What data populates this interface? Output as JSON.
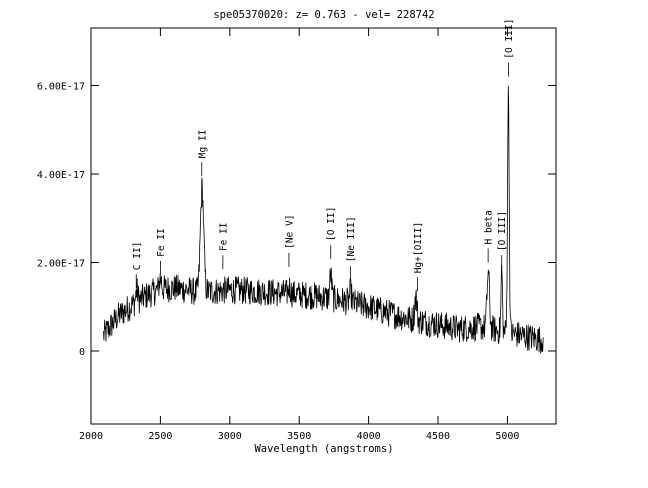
{
  "chart_data": {
    "type": "line",
    "title": "spe05370020: z= 0.763  -  vel= 228742",
    "xlabel": "Wavelength (angstroms)",
    "ylabel": "",
    "xlim": [
      2000,
      5350
    ],
    "ylim": [
      -1.65e-17,
      7.3e-17
    ],
    "x_ticks": [
      2000,
      2500,
      3000,
      3500,
      4000,
      4500,
      5000
    ],
    "y_ticks": [
      {
        "value": 6e-17,
        "label": "6.00E-17"
      },
      {
        "value": 4e-17,
        "label": "4.00E-17"
      },
      {
        "value": 2e-17,
        "label": "2.00E-17"
      },
      {
        "value": 0,
        "label": "0"
      }
    ],
    "spectrum_continuum": [
      [
        2090,
        3.5e-18
      ],
      [
        2200,
        8e-18
      ],
      [
        2300,
        1.05e-17
      ],
      [
        2400,
        1.25e-17
      ],
      [
        2500,
        1.4e-17
      ],
      [
        2600,
        1.42e-17
      ],
      [
        2700,
        1.38e-17
      ],
      [
        2760,
        1.33e-17
      ],
      [
        2900,
        1.35e-17
      ],
      [
        3000,
        1.38e-17
      ],
      [
        3200,
        1.35e-17
      ],
      [
        3400,
        1.3e-17
      ],
      [
        3600,
        1.25e-17
      ],
      [
        3800,
        1.15e-17
      ],
      [
        4000,
        1e-17
      ],
      [
        4150,
        8.5e-18
      ],
      [
        4300,
        7.2e-18
      ],
      [
        4500,
        6e-18
      ],
      [
        4650,
        5e-18
      ],
      [
        4800,
        5.5e-18
      ],
      [
        4950,
        4.5e-18
      ],
      [
        5100,
        3.5e-18
      ],
      [
        5260,
        2.5e-18
      ]
    ],
    "spectrum_peaks": [
      {
        "x": 2330,
        "height": 2.5e-18,
        "width": 8
      },
      {
        "x": 2500,
        "height": 2.5e-18,
        "width": 8
      },
      {
        "x": 2800,
        "height": 2.35e-17,
        "width": 12
      },
      {
        "x": 3430,
        "height": 1.5e-18,
        "width": 8
      },
      {
        "x": 3727,
        "height": 5.5e-18,
        "width": 7
      },
      {
        "x": 3870,
        "height": 2.5e-18,
        "width": 7
      },
      {
        "x": 4340,
        "height": 5.5e-18,
        "width": 8
      },
      {
        "x": 4862,
        "height": 1.25e-17,
        "width": 9
      },
      {
        "x": 4959,
        "height": 1.45e-17,
        "width": 5
      },
      {
        "x": 5007,
        "height": 5.45e-17,
        "width": 6
      }
    ],
    "noise_amplitude": 3.2e-18,
    "emission_lines": [
      {
        "label": "C II]",
        "x": 2326,
        "tick_y": 1.42e-17
      },
      {
        "label": "Fe II",
        "x": 2500,
        "tick_y": 1.72e-17
      },
      {
        "label": "Mg II",
        "x": 2798,
        "tick_y": 3.95e-17
      },
      {
        "label": "Fe II",
        "x": 2950,
        "tick_y": 1.85e-17
      },
      {
        "label": "[Ne V]",
        "x": 3426,
        "tick_y": 1.9e-17
      },
      {
        "label": "[O II]",
        "x": 3727,
        "tick_y": 2.08e-17
      },
      {
        "label": "[Ne III]",
        "x": 3869,
        "tick_y": 1.6e-17
      },
      {
        "label": "Hg+[OIII]",
        "x": 4353,
        "tick_y": 1.35e-17
      },
      {
        "label": "H beta",
        "x": 4861,
        "tick_y": 2e-17
      },
      {
        "label": "[O III]",
        "x": 4959,
        "tick_y": 1.85e-17
      },
      {
        "label": "[O III]",
        "x": 5007,
        "tick_y": 6.2e-17
      }
    ]
  }
}
